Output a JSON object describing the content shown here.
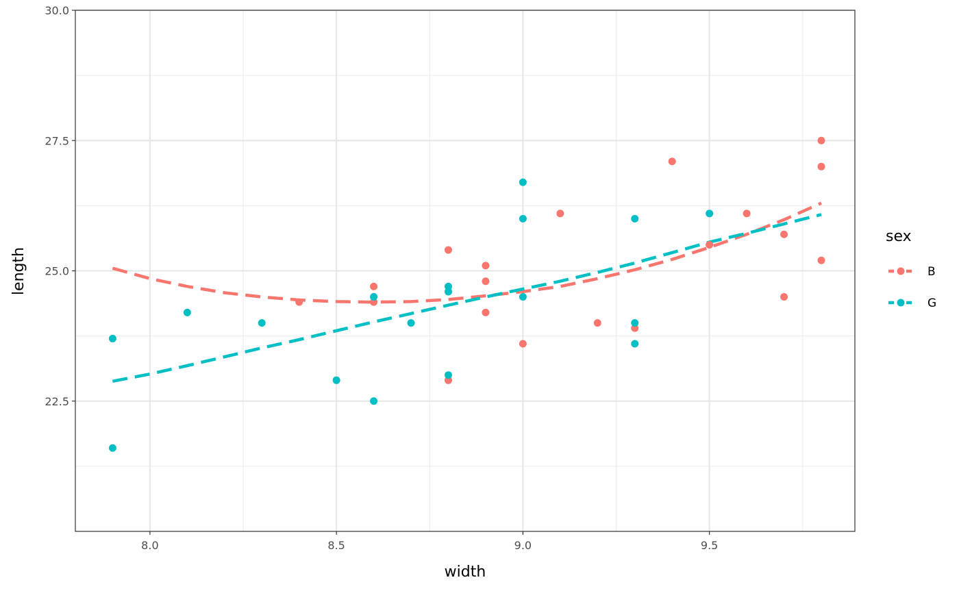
{
  "chart_data": {
    "type": "scatter",
    "xlabel": "width",
    "ylabel": "length",
    "xlim": [
      7.8,
      9.89
    ],
    "ylim": [
      20.0,
      30.0
    ],
    "x_ticks": [
      8.0,
      8.5,
      9.0,
      9.5
    ],
    "x_tick_labels": [
      "8.0",
      "8.5",
      "9.0",
      "9.5"
    ],
    "y_ticks": [
      22.5,
      25.0,
      27.5,
      30.0
    ],
    "y_tick_labels": [
      "22.5",
      "25.0",
      "27.5",
      "30.0"
    ],
    "x_minor": [
      8.25,
      8.75,
      9.25,
      9.75
    ],
    "y_minor": [
      21.25,
      23.75,
      26.25,
      28.75
    ],
    "grid": true,
    "legend": {
      "title": "sex",
      "position": "right"
    },
    "series": [
      {
        "name": "B",
        "color": "#F8766D",
        "points": [
          [
            8.4,
            24.4
          ],
          [
            8.6,
            24.7
          ],
          [
            8.6,
            24.4
          ],
          [
            8.8,
            25.4
          ],
          [
            8.8,
            22.9
          ],
          [
            8.9,
            25.1
          ],
          [
            8.9,
            24.8
          ],
          [
            8.9,
            24.2
          ],
          [
            9.0,
            23.6
          ],
          [
            9.1,
            26.1
          ],
          [
            9.2,
            24.0
          ],
          [
            9.3,
            23.9
          ],
          [
            9.4,
            27.1
          ],
          [
            9.5,
            25.5
          ],
          [
            9.6,
            26.1
          ],
          [
            9.7,
            25.7
          ],
          [
            9.7,
            24.5
          ],
          [
            9.8,
            27.5
          ],
          [
            9.8,
            27.0
          ],
          [
            9.8,
            25.2
          ]
        ],
        "smooth": [
          [
            7.9,
            25.05
          ],
          [
            8.0,
            24.85
          ],
          [
            8.1,
            24.7
          ],
          [
            8.2,
            24.58
          ],
          [
            8.3,
            24.5
          ],
          [
            8.4,
            24.44
          ],
          [
            8.5,
            24.41
          ],
          [
            8.6,
            24.4
          ],
          [
            8.7,
            24.41
          ],
          [
            8.8,
            24.45
          ],
          [
            8.9,
            24.52
          ],
          [
            9.0,
            24.6
          ],
          [
            9.1,
            24.7
          ],
          [
            9.2,
            24.85
          ],
          [
            9.3,
            25.02
          ],
          [
            9.4,
            25.22
          ],
          [
            9.5,
            25.45
          ],
          [
            9.6,
            25.7
          ],
          [
            9.7,
            25.98
          ],
          [
            9.8,
            26.3
          ]
        ]
      },
      {
        "name": "G",
        "color": "#00BFC4",
        "points": [
          [
            7.9,
            23.7
          ],
          [
            7.9,
            21.6
          ],
          [
            8.1,
            24.2
          ],
          [
            8.3,
            24.0
          ],
          [
            8.5,
            22.9
          ],
          [
            8.6,
            24.5
          ],
          [
            8.6,
            22.5
          ],
          [
            8.7,
            24.0
          ],
          [
            8.8,
            24.7
          ],
          [
            8.8,
            24.6
          ],
          [
            8.8,
            23.0
          ],
          [
            9.0,
            26.7
          ],
          [
            9.0,
            26.0
          ],
          [
            9.0,
            24.5
          ],
          [
            9.3,
            26.0
          ],
          [
            9.3,
            24.0
          ],
          [
            9.3,
            23.6
          ],
          [
            9.5,
            26.1
          ]
        ],
        "smooth": [
          [
            7.9,
            22.88
          ],
          [
            8.0,
            23.02
          ],
          [
            8.1,
            23.18
          ],
          [
            8.2,
            23.35
          ],
          [
            8.3,
            23.52
          ],
          [
            8.4,
            23.68
          ],
          [
            8.5,
            23.85
          ],
          [
            8.6,
            24.02
          ],
          [
            8.7,
            24.18
          ],
          [
            8.8,
            24.34
          ],
          [
            8.9,
            24.5
          ],
          [
            9.0,
            24.65
          ],
          [
            9.1,
            24.8
          ],
          [
            9.2,
            24.97
          ],
          [
            9.3,
            25.15
          ],
          [
            9.4,
            25.35
          ],
          [
            9.5,
            25.55
          ],
          [
            9.6,
            25.72
          ],
          [
            9.7,
            25.9
          ],
          [
            9.8,
            26.08
          ]
        ]
      }
    ]
  }
}
